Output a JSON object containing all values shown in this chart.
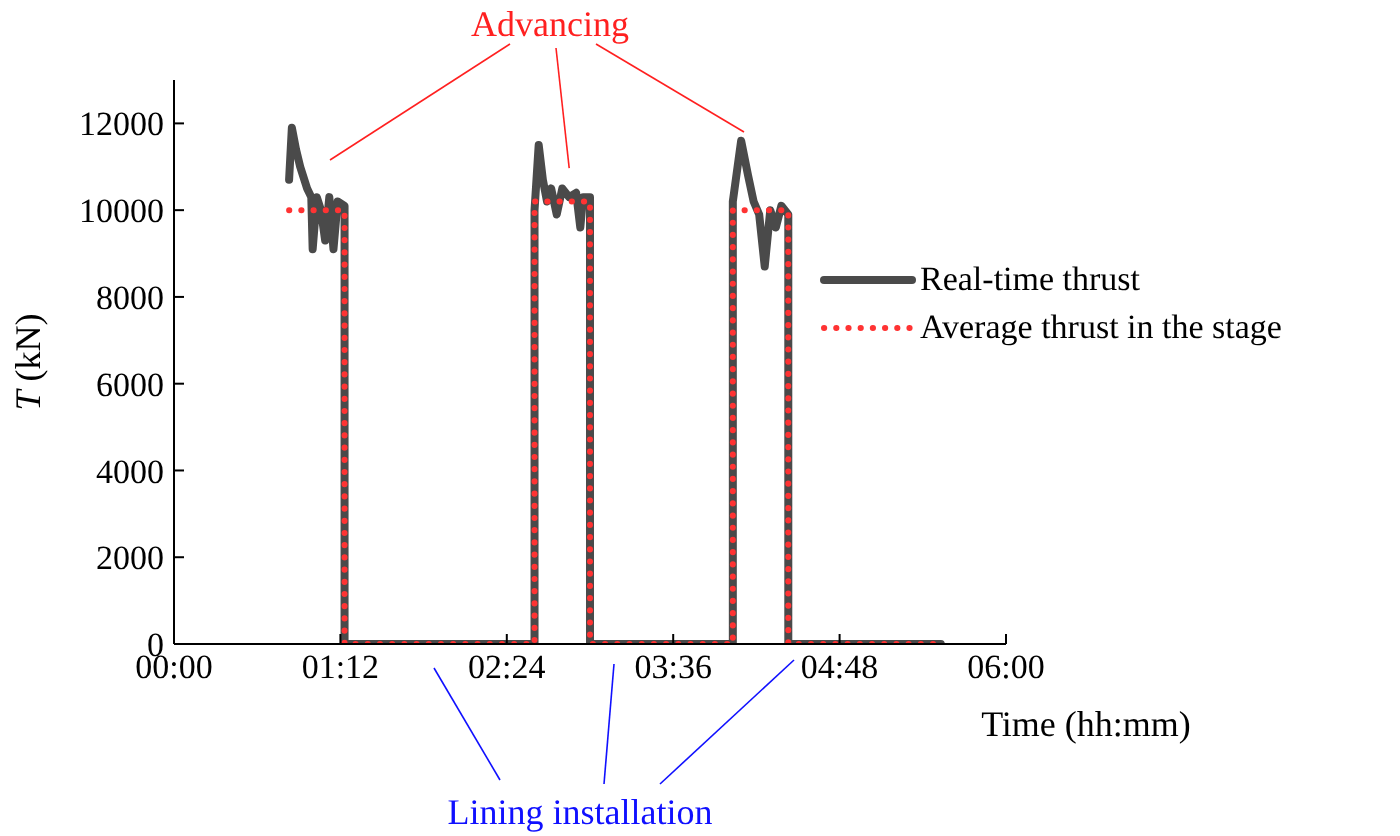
{
  "chart_data": {
    "type": "line",
    "xlabel": "Time (hh:mm)",
    "ylabel": "T (kN)",
    "xlim": [
      0,
      6
    ],
    "xticks": [
      {
        "value": 0,
        "label": "00:00"
      },
      {
        "value": 1.2,
        "label": "01:12"
      },
      {
        "value": 2.4,
        "label": "02:24"
      },
      {
        "value": 3.6,
        "label": "03:36"
      },
      {
        "value": 4.8,
        "label": "04:48"
      },
      {
        "value": 6,
        "label": "06:00"
      }
    ],
    "ylim": [
      0,
      13000
    ],
    "yticks": [
      0,
      2000,
      4000,
      6000,
      8000,
      10000,
      12000
    ],
    "grid": false,
    "legend": "right",
    "marker": "none",
    "annotations": [
      {
        "text": "Advancing",
        "x": 2.85,
        "y": 10600
      },
      "Lining installation"
    ],
    "series": [
      {
        "name": "Real-time thrust",
        "color": "#4a4a4a",
        "line_style": "solid",
        "x": [
          0.83,
          0.85,
          0.88,
          0.91,
          0.96,
          0.99,
          1.0,
          1.03,
          1.06,
          1.09,
          1.12,
          1.15,
          1.18,
          1.23,
          1.23,
          2.6,
          2.6,
          2.63,
          2.66,
          2.69,
          2.72,
          2.76,
          2.8,
          2.85,
          2.9,
          2.93,
          2.95,
          3.0,
          3.0,
          4.03,
          4.03,
          4.09,
          4.14,
          4.18,
          4.22,
          4.26,
          4.3,
          4.34,
          4.38,
          4.43,
          4.43,
          5.53
        ],
        "values": [
          10700,
          11900,
          11400,
          11000,
          10500,
          10300,
          9100,
          10300,
          10000,
          9300,
          10300,
          9100,
          10200,
          10100,
          0,
          0,
          10000,
          11500,
          10700,
          10200,
          10500,
          9900,
          10500,
          10300,
          10400,
          9600,
          10300,
          10300,
          0,
          0,
          10200,
          11600,
          10800,
          10200,
          9900,
          8700,
          10000,
          9600,
          10100,
          9900,
          0,
          0
        ]
      },
      {
        "name": "Average thrust in the stage",
        "color": "#ff3333",
        "line_style": "dotted",
        "x": [
          0.83,
          1.23,
          1.23,
          2.6,
          2.6,
          3.0,
          3.0,
          4.03,
          4.03,
          4.43,
          4.43,
          5.53
        ],
        "values": [
          10000,
          10000,
          0,
          0,
          10200,
          10200,
          0,
          0,
          10000,
          10000,
          0,
          0
        ]
      }
    ]
  }
}
